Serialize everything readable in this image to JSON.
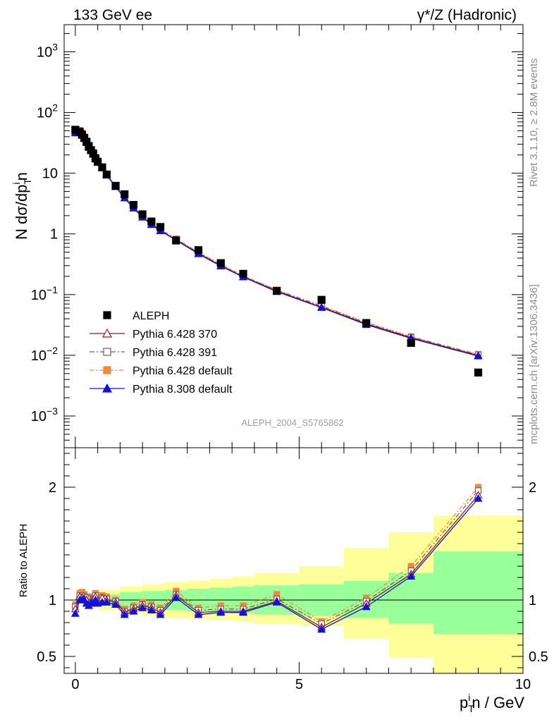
{
  "header": {
    "left_title": "133 GeV ee",
    "right_title": "γ*/Z (Hadronic)"
  },
  "side_labels": {
    "rivet": "Rivet 3.1.10, ≥ 2.8M events",
    "mcplots": "mcplots.cern.ch [arXiv:1306.3436]"
  },
  "analysis_label": "ALEPH_2004_S5765862",
  "axes": {
    "y_main_label": "N dσ/dp",
    "y_main_sub": "T",
    "y_main_sup": "i",
    "y_main_tail": "n",
    "y_ratio_label": "Ratio to ALEPH",
    "x_label_p": "p",
    "x_label_sub": "T",
    "x_label_sup": "i",
    "x_label_tail": "n / GeV"
  },
  "legend": [
    {
      "label": "ALEPH",
      "color": "#000000",
      "marker": "filled-square"
    },
    {
      "label": "Pythia 6.428 370",
      "color": "#9b1b1b",
      "marker": "open-triangle"
    },
    {
      "label": "Pythia 6.428 391",
      "color": "#7a5a66",
      "marker": "open-square"
    },
    {
      "label": "Pythia 6.428 default",
      "color": "#f08a3c",
      "marker": "filled-square"
    },
    {
      "label": "Pythia 8.308 default",
      "color": "#1010e0",
      "marker": "filled-triangle"
    }
  ],
  "chart_data": [
    {
      "type": "line",
      "panel": "main",
      "xlim": [
        -0.25,
        10
      ],
      "ylim": [
        0.0003,
        2800
      ],
      "yscale": "log",
      "x_ticks": [
        0,
        5,
        10
      ],
      "y_ticks": [
        {
          "value": 0.001,
          "label": "10^-3"
        },
        {
          "value": 0.01,
          "label": "10^-2"
        },
        {
          "value": 0.1,
          "label": "10^-1"
        },
        {
          "value": 1,
          "label": "1"
        },
        {
          "value": 10,
          "label": "10"
        },
        {
          "value": 100,
          "label": "10^2"
        },
        {
          "value": 1000,
          "label": "10^3"
        }
      ],
      "x": [
        0.0,
        0.1,
        0.15,
        0.2,
        0.25,
        0.3,
        0.35,
        0.4,
        0.45,
        0.5,
        0.6,
        0.7,
        0.9,
        1.1,
        1.3,
        1.5,
        1.7,
        1.9,
        2.25,
        2.75,
        3.25,
        3.75,
        4.5,
        5.5,
        6.5,
        7.5,
        9.0
      ],
      "series": [
        {
          "name": "ALEPH",
          "values": [
            52,
            48,
            43,
            38,
            33,
            28,
            24,
            21,
            17.5,
            15.5,
            12.5,
            9.5,
            6.2,
            4.5,
            3.0,
            2.1,
            1.6,
            1.3,
            0.78,
            0.54,
            0.33,
            0.22,
            0.115,
            0.082,
            0.034,
            0.016,
            0.0052
          ]
        },
        {
          "name": "Pythia 6.428 370",
          "values": [
            48,
            49,
            44,
            38,
            32,
            27,
            24,
            21,
            18,
            15,
            12.5,
            9.4,
            6.0,
            3.9,
            2.7,
            1.9,
            1.44,
            1.14,
            0.8,
            0.48,
            0.3,
            0.197,
            0.115,
            0.062,
            0.033,
            0.0195,
            0.0099
          ]
        },
        {
          "name": "Pythia 6.428 391",
          "values": [
            49,
            50,
            45,
            39,
            33,
            27.5,
            24,
            21.5,
            18,
            15.3,
            12.6,
            9.5,
            6.1,
            4.0,
            2.75,
            1.95,
            1.47,
            1.16,
            0.81,
            0.49,
            0.305,
            0.2,
            0.117,
            0.064,
            0.034,
            0.0199,
            0.0102
          ]
        },
        {
          "name": "Pythia 6.428 default",
          "values": [
            50,
            51,
            46,
            40,
            33.5,
            28,
            24.5,
            22,
            18.5,
            15.6,
            12.8,
            9.7,
            6.2,
            4.1,
            2.8,
            2.0,
            1.5,
            1.19,
            0.83,
            0.5,
            0.315,
            0.205,
            0.12,
            0.066,
            0.035,
            0.0204,
            0.0104
          ]
        },
        {
          "name": "Pythia 8.308 default",
          "values": [
            46,
            48,
            43,
            38,
            32,
            26.5,
            23.5,
            20.5,
            17.5,
            15,
            12.2,
            9.3,
            6.0,
            3.9,
            2.65,
            1.88,
            1.42,
            1.12,
            0.79,
            0.47,
            0.295,
            0.195,
            0.112,
            0.061,
            0.032,
            0.019,
            0.0097
          ]
        }
      ]
    },
    {
      "type": "line",
      "panel": "ratio",
      "xlim": [
        -0.25,
        10
      ],
      "ylim": [
        0.35,
        2.35
      ],
      "y_ticks": [
        0.5,
        1,
        2
      ],
      "x": [
        0.0,
        0.1,
        0.15,
        0.2,
        0.25,
        0.3,
        0.35,
        0.4,
        0.45,
        0.5,
        0.6,
        0.7,
        0.9,
        1.1,
        1.3,
        1.5,
        1.7,
        1.9,
        2.25,
        2.75,
        3.25,
        3.75,
        4.5,
        5.5,
        6.5,
        7.5,
        9.0
      ],
      "uncertainty_bins": {
        "edges": [
          0,
          0.5,
          1.0,
          1.5,
          2.0,
          2.5,
          3.0,
          3.5,
          4.0,
          5.0,
          6.0,
          7.0,
          8.0,
          10.0
        ],
        "inner_low": [
          0.97,
          0.95,
          0.93,
          0.92,
          0.91,
          0.9,
          0.89,
          0.88,
          0.87,
          0.86,
          0.84,
          0.79,
          0.7
        ],
        "inner_high": [
          1.03,
          1.05,
          1.07,
          1.08,
          1.09,
          1.1,
          1.11,
          1.12,
          1.13,
          1.14,
          1.17,
          1.24,
          1.43
        ],
        "outer_low": [
          0.95,
          0.91,
          0.88,
          0.86,
          0.84,
          0.83,
          0.82,
          0.81,
          0.79,
          0.77,
          0.66,
          0.49,
          0.35
        ],
        "outer_high": [
          1.05,
          1.09,
          1.12,
          1.14,
          1.16,
          1.17,
          1.19,
          1.21,
          1.24,
          1.3,
          1.46,
          1.6,
          1.75
        ]
      },
      "series": [
        {
          "name": "Pythia 6.428 370",
          "values": [
            0.92,
            1.03,
            1.02,
            1.01,
            1.0,
            0.97,
            1.0,
            1.0,
            1.03,
            0.99,
            1.02,
            1.0,
            0.98,
            0.89,
            0.92,
            0.95,
            0.93,
            0.89,
            1.04,
            0.89,
            0.9,
            0.9,
            0.99,
            0.76,
            0.97,
            1.23,
            1.93
          ]
        },
        {
          "name": "Pythia 6.428 391",
          "values": [
            0.94,
            1.04,
            1.04,
            1.03,
            1.02,
            0.98,
            1.01,
            1.01,
            1.04,
            1.0,
            1.02,
            1.01,
            0.99,
            0.9,
            0.93,
            0.96,
            0.94,
            0.91,
            1.05,
            0.91,
            0.92,
            0.92,
            1.01,
            0.79,
            0.99,
            1.26,
            1.97
          ]
        },
        {
          "name": "Pythia 6.428 default",
          "values": [
            0.96,
            1.06,
            1.07,
            1.05,
            1.03,
            1.0,
            1.02,
            1.03,
            1.06,
            1.02,
            1.04,
            1.03,
            1.0,
            0.92,
            0.95,
            0.98,
            0.96,
            0.93,
            1.08,
            0.93,
            0.95,
            0.95,
            1.05,
            0.81,
            1.02,
            1.3,
            2.0
          ]
        },
        {
          "name": "Pythia 8.308 default",
          "values": [
            0.88,
            1.0,
            1.0,
            1.0,
            0.97,
            0.95,
            0.98,
            0.97,
            1.0,
            0.97,
            0.98,
            0.98,
            0.96,
            0.87,
            0.9,
            0.93,
            0.91,
            0.87,
            1.02,
            0.87,
            0.89,
            0.89,
            0.98,
            0.74,
            0.94,
            1.21,
            1.9
          ]
        }
      ]
    }
  ]
}
